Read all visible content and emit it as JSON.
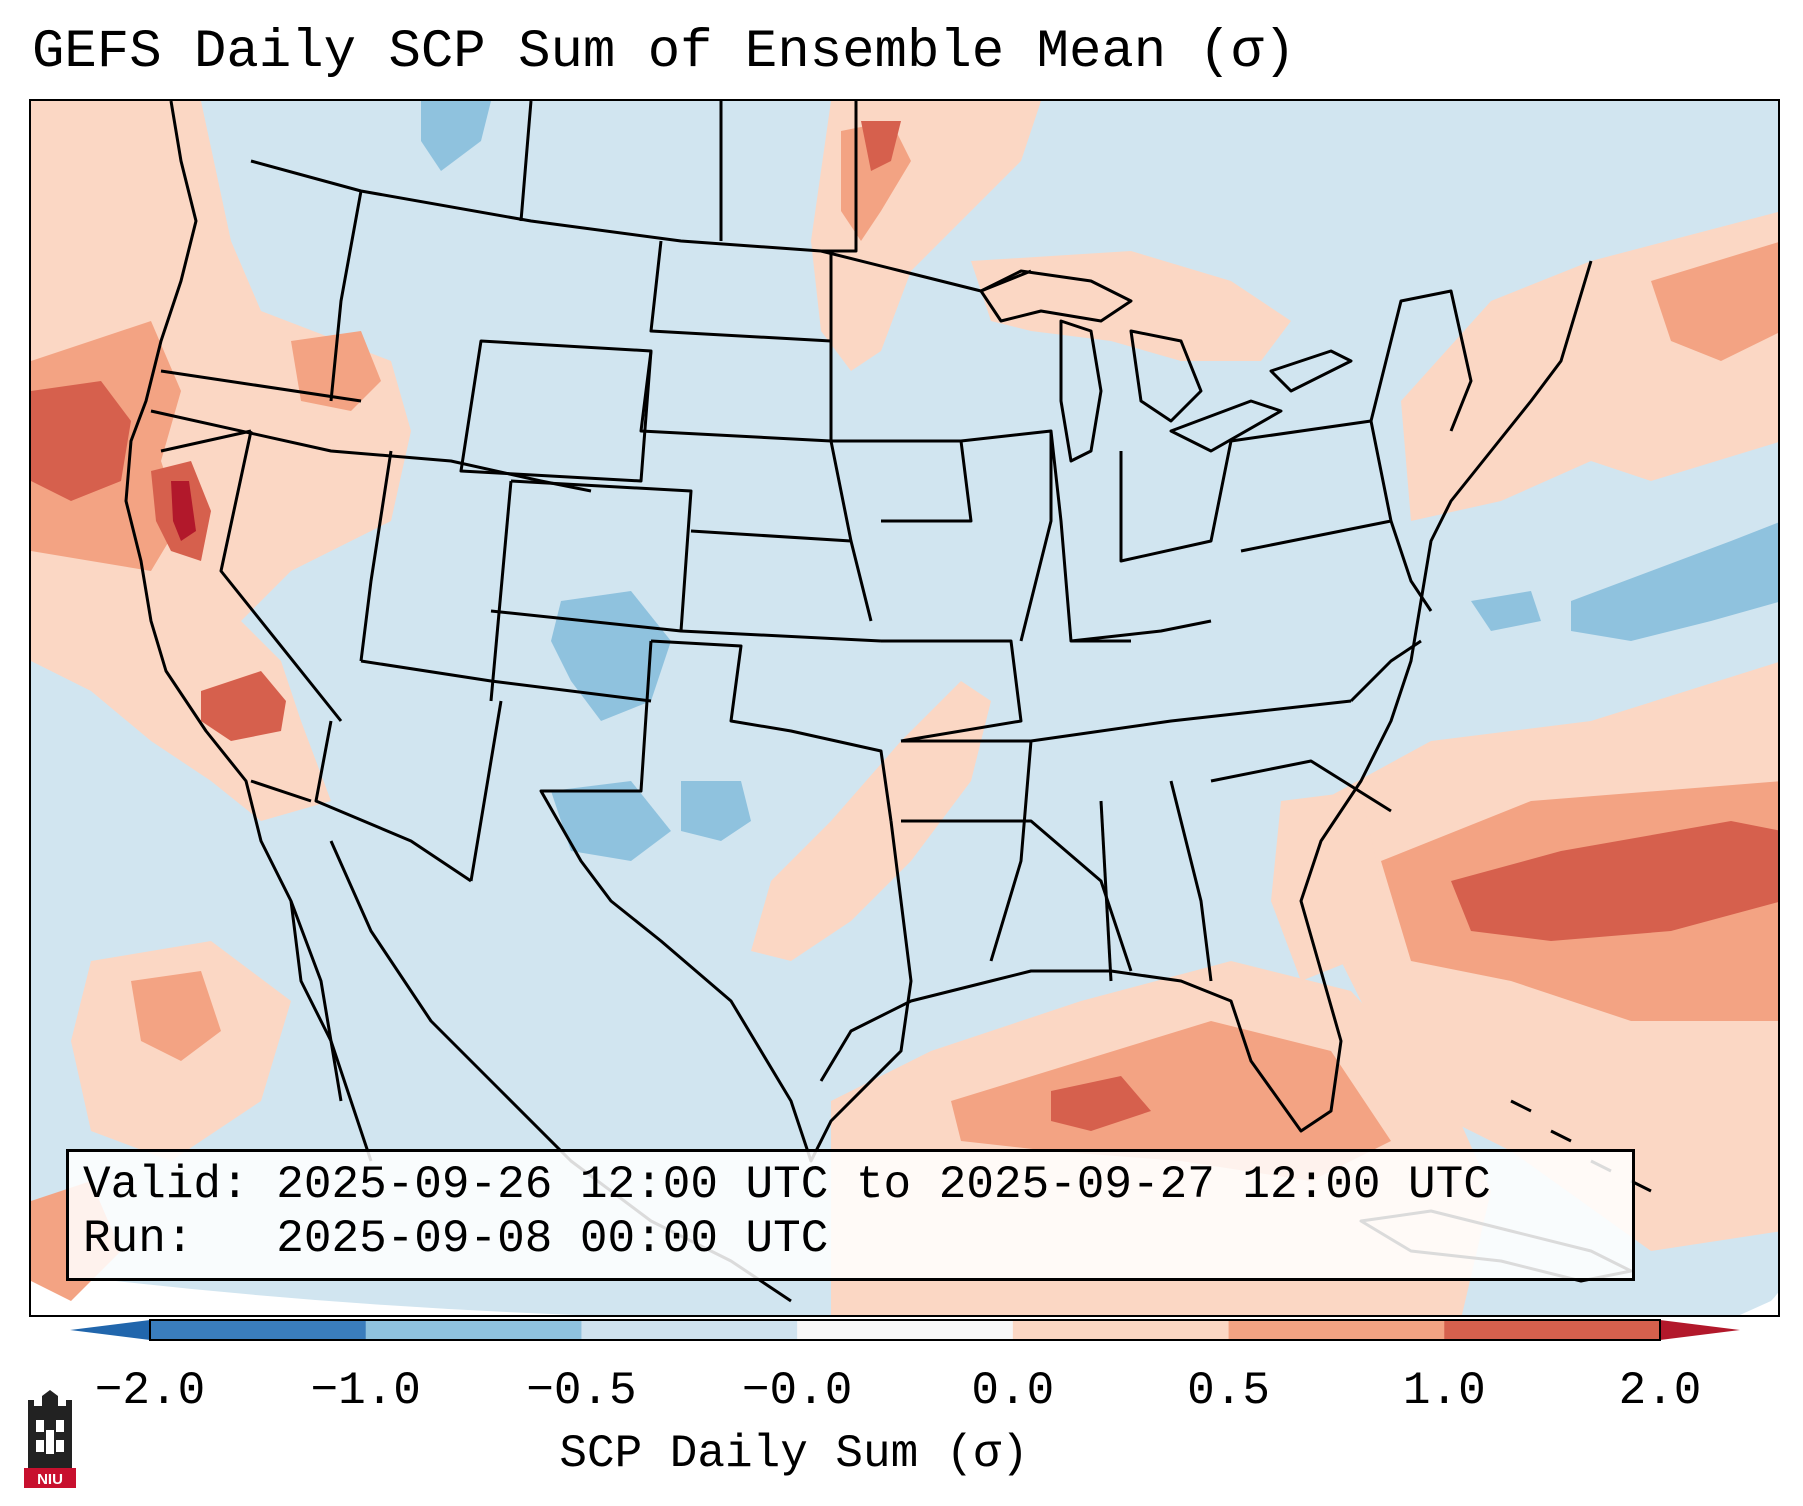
{
  "title": "GEFS Daily SCP Sum of Ensemble Mean (σ)",
  "info": {
    "valid_label": "Valid:",
    "valid_value": "2025-09-26 12:00 UTC to 2025-09-27 12:00 UTC",
    "run_label": "Run:",
    "run_value": "2025-09-08 00:00 UTC"
  },
  "colorbar": {
    "label": "SCP Daily Sum (σ)",
    "ticks": [
      "−2.0",
      "−1.0",
      "−0.5",
      "−0.0",
      "0.0",
      "0.5",
      "1.0",
      "2.0"
    ],
    "bin_colors": [
      "#3a7dbd",
      "#8fc2de",
      "#d0e3ef",
      "#f7f7f7",
      "#fbd7c4",
      "#f3a383",
      "#d6604d"
    ],
    "extend_min_color": "#2166ac",
    "extend_max_color": "#b2182b"
  },
  "map": {
    "background_color": "#d1e5f0",
    "border_color": "#000000"
  },
  "logo": {
    "text": "NIU",
    "color": "#c8102e"
  }
}
